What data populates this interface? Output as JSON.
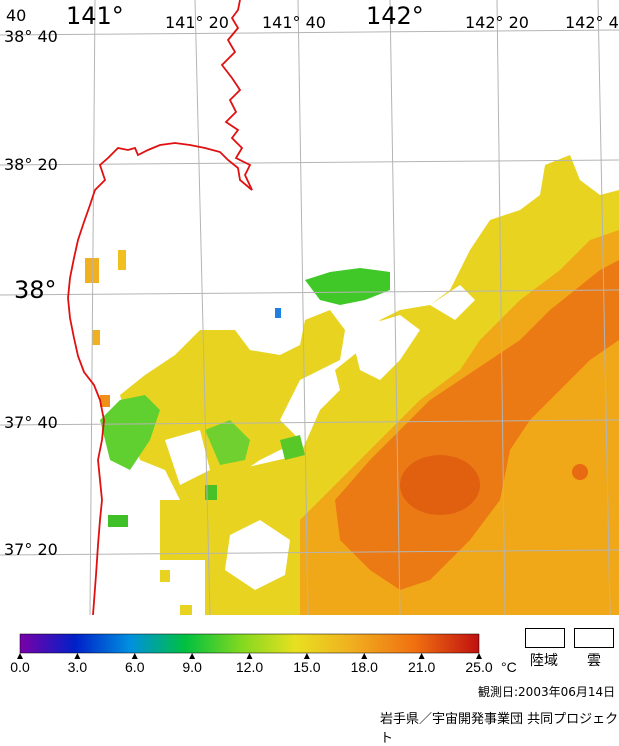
{
  "map": {
    "lon_labels": [
      "141°",
      "141° 20",
      "141° 40",
      "142°",
      "142° 20",
      "142° 4"
    ],
    "lat_labels": [
      "38° 40",
      "38° 20",
      "38°",
      "37° 40",
      "37° 20"
    ],
    "corner_label": "40"
  },
  "legend": {
    "tick_labels": [
      "0.0",
      "3.0",
      "6.0",
      "9.0",
      "12.0",
      "15.0",
      "18.0",
      "21.0",
      "25.0"
    ],
    "unit": "°C",
    "land_label": "陸域",
    "cloud_label": "雲",
    "min": 0.0,
    "max": 25.0
  },
  "footer": {
    "observation_date": "観測日:2003年06月14日",
    "credit": "岩手県／宇宙開発事業団 共同プロジェクト"
  },
  "colors": {
    "coastline": "#e01010",
    "grid": "#b4b4b4",
    "colorbar": [
      "#7a00a8",
      "#0020c8",
      "#0090e0",
      "#00c040",
      "#80d820",
      "#e8e020",
      "#f0b020",
      "#f07010",
      "#c01010"
    ]
  }
}
